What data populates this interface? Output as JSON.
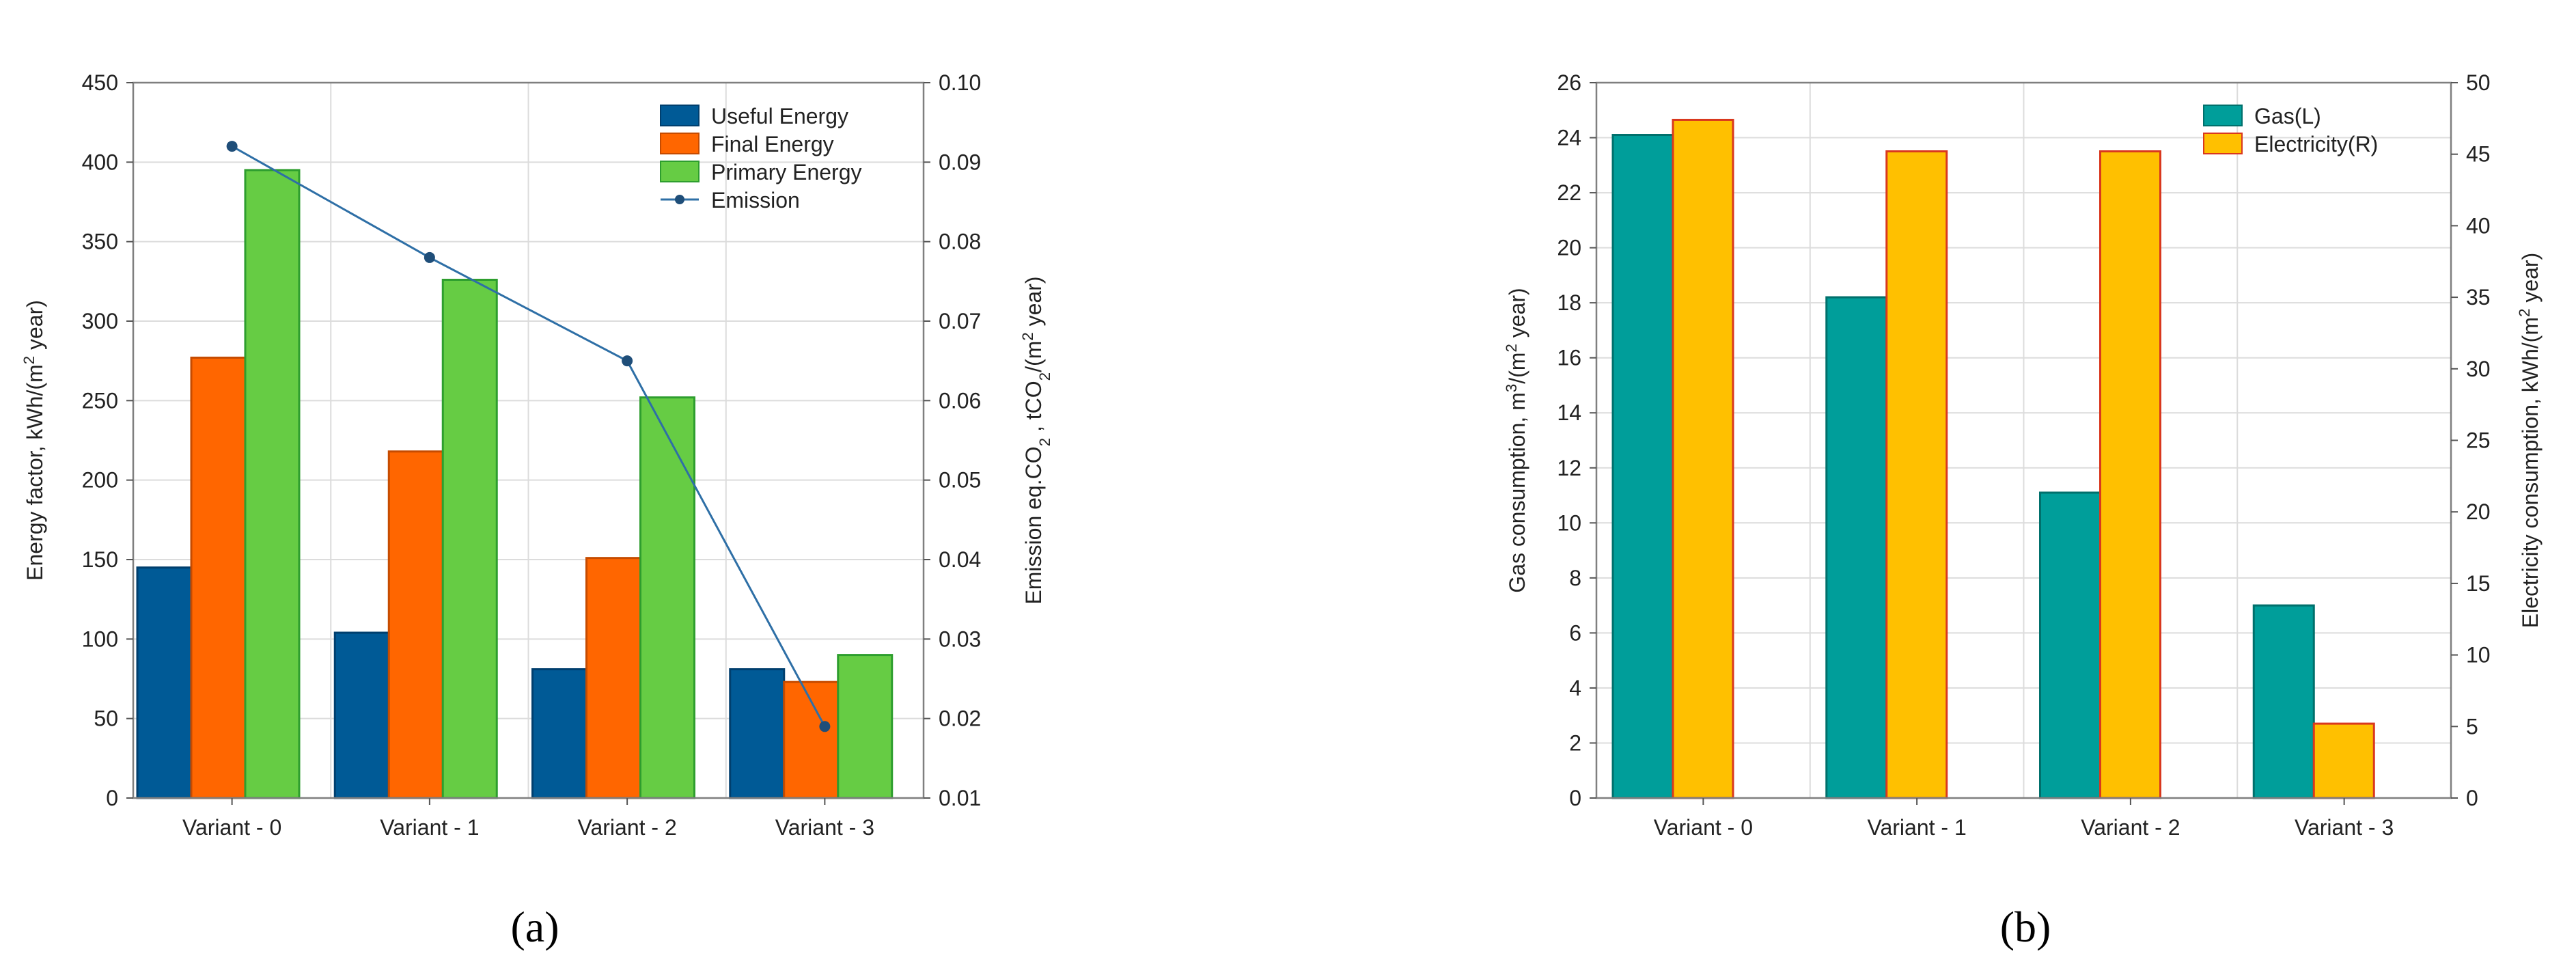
{
  "figure": {
    "caption_a": "(a)",
    "caption_b": "(b)"
  },
  "chart_data": [
    {
      "id": "a",
      "type": "bar",
      "categories": [
        "Variant - 0",
        "Variant - 1",
        "Variant - 2",
        "Variant - 3"
      ],
      "series": [
        {
          "name": "Useful Energy",
          "values": [
            145,
            104,
            81,
            81
          ],
          "color": "#005A96",
          "edge": "#003F6E",
          "axis": "left"
        },
        {
          "name": "Final Energy",
          "values": [
            277,
            218,
            151,
            73
          ],
          "color": "#FF6600",
          "edge": "#C64B00",
          "axis": "left"
        },
        {
          "name": "Primary Energy",
          "values": [
            395,
            326,
            252,
            90
          ],
          "color": "#66CC44",
          "edge": "#2E9E2E",
          "axis": "left"
        }
      ],
      "line_series": {
        "name": "Emission",
        "values": [
          0.092,
          0.078,
          0.065,
          0.019
        ],
        "color": "#2E6FA6",
        "axis": "right"
      },
      "ylabel_left": "Energy factor, kWh/(m² year)",
      "ylabel_right": "Emission eq.CO₂ , tCO₂/(m² year)",
      "ylim_left": [
        0,
        450
      ],
      "yticks_left": [
        "0",
        "50",
        "100",
        "150",
        "200",
        "250",
        "300",
        "350",
        "400",
        "450"
      ],
      "ylim_right": [
        0.01,
        0.1
      ],
      "yticks_right": [
        "0.01",
        "0.02",
        "0.03",
        "0.04",
        "0.05",
        "0.06",
        "0.07",
        "0.08",
        "0.09",
        "0.10"
      ],
      "grid": true,
      "legend": "top-right"
    },
    {
      "id": "b",
      "type": "bar",
      "categories": [
        "Variant - 0",
        "Variant - 1",
        "Variant - 2",
        "Variant - 3"
      ],
      "series": [
        {
          "name": "Gas(L)",
          "values": [
            24.1,
            18.2,
            11.1,
            7.0
          ],
          "color": "#009E9A",
          "edge": "#00706C",
          "axis": "left"
        },
        {
          "name": "Electricity(R)",
          "values": [
            47.4,
            45.2,
            45.2,
            5.2
          ],
          "color": "#FFC000",
          "edge": "#D9381E",
          "axis": "right"
        }
      ],
      "ylabel_left": "Gas consumption, m³/(m² year)",
      "ylabel_right": "Electricity consumption, kWh/(m² year)",
      "ylim_left": [
        0,
        26
      ],
      "yticks_left": [
        "0",
        "2",
        "4",
        "6",
        "8",
        "10",
        "12",
        "14",
        "16",
        "18",
        "20",
        "22",
        "24",
        "26"
      ],
      "ylim_right": [
        0,
        50
      ],
      "yticks_right": [
        "0",
        "5",
        "10",
        "15",
        "20",
        "25",
        "30",
        "35",
        "40",
        "45",
        "50"
      ],
      "grid": true,
      "legend": "top-right"
    }
  ]
}
